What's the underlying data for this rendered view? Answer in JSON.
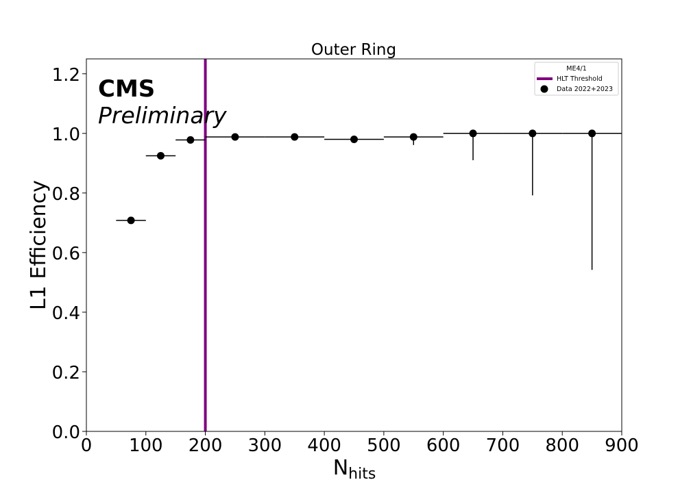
{
  "chart_data": {
    "type": "scatter",
    "title": "Outer Ring",
    "xlabel": "N",
    "xlabel_sub": "hits",
    "ylabel": "L1 Efficiency",
    "xlim": [
      0,
      900
    ],
    "ylim": [
      0,
      1.25
    ],
    "xticks": [
      0,
      100,
      200,
      300,
      400,
      500,
      600,
      700,
      800,
      900
    ],
    "yticks": [
      0.0,
      0.2,
      0.4,
      0.6,
      0.8,
      1.0,
      1.2
    ],
    "ytick_labels": [
      "0.0",
      "0.2",
      "0.4",
      "0.6",
      "0.8",
      "1.0",
      "1.2"
    ],
    "grid": false,
    "annotations": {
      "cms": "CMS",
      "preliminary": "Preliminary"
    },
    "legend": {
      "placement": "top-right",
      "title": "ME4/1",
      "entries": [
        {
          "label": "HLT Threshold",
          "kind": "line",
          "color": "#800080"
        },
        {
          "label": "Data 2022+2023",
          "kind": "marker",
          "color": "#000000"
        }
      ]
    },
    "threshold": {
      "name": "HLT Threshold",
      "x": 200,
      "color": "#800080"
    },
    "series": [
      {
        "name": "Data 2022+2023",
        "color": "#000000",
        "points": [
          {
            "x": 75,
            "xerr": 25,
            "y": 0.708,
            "yerr_low": 0.0,
            "yerr_high": 0.0
          },
          {
            "x": 125,
            "xerr": 25,
            "y": 0.925,
            "yerr_low": 0.0,
            "yerr_high": 0.0
          },
          {
            "x": 175,
            "xerr": 25,
            "y": 0.978,
            "yerr_low": 0.0,
            "yerr_high": 0.0
          },
          {
            "x": 250,
            "xerr": 50,
            "y": 0.988,
            "yerr_low": 0.0,
            "yerr_high": 0.0
          },
          {
            "x": 350,
            "xerr": 50,
            "y": 0.988,
            "yerr_low": 0.0,
            "yerr_high": 0.0
          },
          {
            "x": 450,
            "xerr": 50,
            "y": 0.98,
            "yerr_low": 0.0,
            "yerr_high": 0.0
          },
          {
            "x": 550,
            "xerr": 50,
            "y": 0.988,
            "yerr_low": 0.027,
            "yerr_high": 0.0
          },
          {
            "x": 650,
            "xerr": 50,
            "y": 1.0,
            "yerr_low": 0.09,
            "yerr_high": 0.0
          },
          {
            "x": 750,
            "xerr": 50,
            "y": 1.0,
            "yerr_low": 0.208,
            "yerr_high": 0.0
          },
          {
            "x": 850,
            "xerr": 50,
            "y": 1.0,
            "yerr_low": 0.458,
            "yerr_high": 0.0
          }
        ]
      }
    ]
  }
}
